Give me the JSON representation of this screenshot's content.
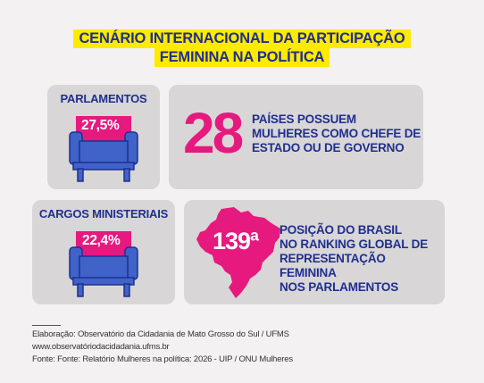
{
  "title": {
    "line1": "CENÁRIO INTERNACIONAL DA PARTICIPAÇÃO",
    "line2": "FEMININA NA POLÍTICA"
  },
  "parlamentos": {
    "label": "PARLAMENTOS",
    "percent": "27,5%"
  },
  "chefes": {
    "number": "28",
    "lines": [
      "PAÍSES POSSUEM",
      "MULHERES COMO CHEFE DE",
      "ESTADO OU DE GOVERNO"
    ]
  },
  "ministerios": {
    "label": "CARGOS MINISTERIAIS",
    "percent": "22,4%"
  },
  "brasil": {
    "rank": "139ª",
    "lines": [
      "POSIÇÃO DO BRASIL",
      "NO RANKING GLOBAL DE",
      "REPRESENTAÇÃO FEMININA",
      "NOS PARLAMENTOS"
    ]
  },
  "footer": {
    "line1": "Elaboração: Observatório da Cidadania de Mato Grosso do Sul / UFMS",
    "line2": "www.observatóriodacidadania.ufms.br",
    "line3": "Fonte: Fonte: Relatório Mulheres na política: 2026 - UIP / ONU Mulheres"
  },
  "icons": {
    "seat": "armchair-icon",
    "country": "brazil-map-icon"
  },
  "colors": {
    "navy": "#1f2f8f",
    "magenta": "#e6197f",
    "yellow": "#ffea00",
    "chair": "#3f63c9",
    "card": "#d8d6d6"
  }
}
